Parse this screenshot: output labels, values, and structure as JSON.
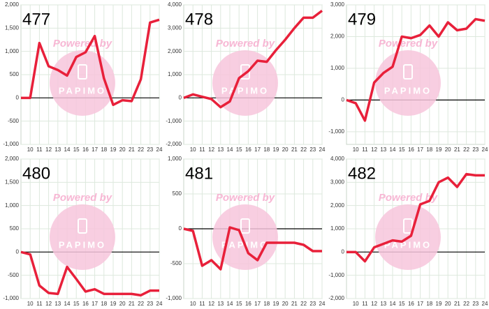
{
  "chart_data": [
    {
      "type": "line",
      "title": "477",
      "annotations": [
        "Powered by",
        "PAPIMO"
      ],
      "grid": true,
      "x": [
        9,
        10,
        11,
        12,
        13,
        14,
        15,
        16,
        17,
        18,
        19,
        20,
        21,
        22,
        23,
        24
      ],
      "xlim": [
        9,
        24
      ],
      "xticks": [
        10,
        11,
        12,
        13,
        14,
        15,
        16,
        17,
        18,
        19,
        20,
        21,
        22,
        23,
        24
      ],
      "ylim": [
        -1000,
        2000
      ],
      "yticks": [
        {
          "value": -1000,
          "label": "-1,000"
        },
        -500,
        0,
        500,
        {
          "value": 1000,
          "label": "1,000"
        },
        {
          "value": 1500,
          "label": "1,500"
        },
        {
          "value": 2000,
          "label": "2,000"
        }
      ],
      "series": [
        {
          "color": "#e8203a",
          "values": [
            0,
            0,
            1180,
            680,
            600,
            480,
            880,
            980,
            1330,
            420,
            -150,
            -50,
            -70,
            400,
            1620,
            1680
          ]
        }
      ]
    },
    {
      "type": "line",
      "title": "478",
      "annotations": [
        "Powered by",
        "PAPIMO"
      ],
      "grid": true,
      "x": [
        9,
        10,
        11,
        12,
        13,
        14,
        15,
        16,
        17,
        18,
        19,
        20,
        21,
        22,
        23,
        24
      ],
      "xlim": [
        9,
        24
      ],
      "xticks": [
        10,
        11,
        12,
        13,
        14,
        15,
        16,
        17,
        18,
        19,
        20,
        21,
        22,
        23,
        24
      ],
      "ylim": [
        -2000,
        4000
      ],
      "yticks": [
        {
          "value": -2000,
          "label": "-2,000"
        },
        {
          "value": -1000,
          "label": "-1,000"
        },
        0,
        {
          "value": 1000,
          "label": "1,000"
        },
        {
          "value": 2000,
          "label": "2,000"
        },
        {
          "value": 3000,
          "label": "3,000"
        },
        {
          "value": 4000,
          "label": "4,000"
        }
      ],
      "series": [
        {
          "color": "#e8203a",
          "values": [
            0,
            150,
            50,
            -50,
            -400,
            -150,
            850,
            1150,
            1600,
            1550,
            2050,
            2500,
            3000,
            3450,
            3450,
            3750
          ]
        }
      ]
    },
    {
      "type": "line",
      "title": "479",
      "annotations": [
        "Powered by",
        "PAPIMO"
      ],
      "grid": true,
      "x": [
        9,
        10,
        11,
        12,
        13,
        14,
        15,
        16,
        17,
        18,
        19,
        20,
        21,
        22,
        23,
        24
      ],
      "xlim": [
        9,
        24
      ],
      "xticks": [
        10,
        11,
        12,
        13,
        14,
        15,
        16,
        17,
        18,
        19,
        20,
        21,
        22,
        23,
        24
      ],
      "ylim": [
        -1400,
        3000
      ],
      "yticks": [
        {
          "value": -1000,
          "label": "-1,000"
        },
        0,
        {
          "value": 1000,
          "label": "1,000"
        },
        {
          "value": 2000,
          "label": "2,000"
        },
        {
          "value": 3000,
          "label": "3,000"
        }
      ],
      "series": [
        {
          "color": "#e8203a",
          "values": [
            0,
            -100,
            -650,
            550,
            850,
            1050,
            2000,
            1950,
            2050,
            2350,
            2000,
            2450,
            2200,
            2250,
            2550,
            2500
          ]
        }
      ]
    },
    {
      "type": "line",
      "title": "480",
      "annotations": [
        "Powered by",
        "PAPIMO"
      ],
      "grid": true,
      "x": [
        9,
        10,
        11,
        12,
        13,
        14,
        15,
        16,
        17,
        18,
        19,
        20,
        21,
        22,
        23,
        24
      ],
      "xlim": [
        9,
        24
      ],
      "xticks": [
        10,
        11,
        12,
        13,
        14,
        15,
        16,
        17,
        18,
        19,
        20,
        21,
        22,
        23,
        24
      ],
      "ylim": [
        -1000,
        2000
      ],
      "yticks": [
        {
          "value": -1000,
          "label": "-1,000"
        },
        -500,
        0,
        500,
        {
          "value": 1000,
          "label": "1,000"
        },
        {
          "value": 1500,
          "label": "1,500"
        },
        {
          "value": 2000,
          "label": "2,000"
        }
      ],
      "series": [
        {
          "color": "#e8203a",
          "values": [
            0,
            -50,
            -720,
            -880,
            -900,
            -320,
            -580,
            -850,
            -800,
            -900,
            -900,
            -900,
            -900,
            -930,
            -830,
            -830
          ]
        }
      ]
    },
    {
      "type": "line",
      "title": "481",
      "annotations": [
        "Powered by",
        "PAPIMO"
      ],
      "grid": true,
      "x": [
        9,
        10,
        11,
        12,
        13,
        14,
        15,
        16,
        17,
        18,
        19,
        20,
        21,
        22,
        23,
        24
      ],
      "xlim": [
        9,
        24
      ],
      "xticks": [
        10,
        11,
        12,
        13,
        14,
        15,
        16,
        17,
        18,
        19,
        20,
        21,
        22,
        23,
        24
      ],
      "ylim": [
        -1000,
        1000
      ],
      "yticks": [
        {
          "value": -1000,
          "label": "-1,000"
        },
        -500,
        0,
        500,
        {
          "value": 1000,
          "label": "1,000"
        }
      ],
      "series": [
        {
          "color": "#e8203a",
          "values": [
            0,
            -30,
            -530,
            -450,
            -580,
            20,
            -20,
            -350,
            -450,
            -200,
            -200,
            -200,
            -200,
            -230,
            -320,
            -320
          ]
        }
      ]
    },
    {
      "type": "line",
      "title": "482",
      "annotations": [
        "Powered by",
        "PAPIMO"
      ],
      "grid": true,
      "x": [
        9,
        10,
        11,
        12,
        13,
        14,
        15,
        16,
        17,
        18,
        19,
        20,
        21,
        22,
        23,
        24
      ],
      "xlim": [
        9,
        24
      ],
      "xticks": [
        10,
        11,
        12,
        13,
        14,
        15,
        16,
        17,
        18,
        19,
        20,
        21,
        22,
        23,
        24
      ],
      "ylim": [
        -2000,
        4000
      ],
      "yticks": [
        {
          "value": -2000,
          "label": "-2,000"
        },
        {
          "value": -1000,
          "label": "-1,000"
        },
        0,
        {
          "value": 1000,
          "label": "1,000"
        },
        {
          "value": 2000,
          "label": "2,000"
        },
        {
          "value": 3000,
          "label": "3,000"
        },
        {
          "value": 4000,
          "label": "4,000"
        }
      ],
      "series": [
        {
          "color": "#e8203a",
          "values": [
            0,
            0,
            -400,
            200,
            350,
            500,
            450,
            700,
            2050,
            2200,
            3000,
            3200,
            2800,
            3350,
            3300,
            3300
          ]
        }
      ]
    }
  ]
}
